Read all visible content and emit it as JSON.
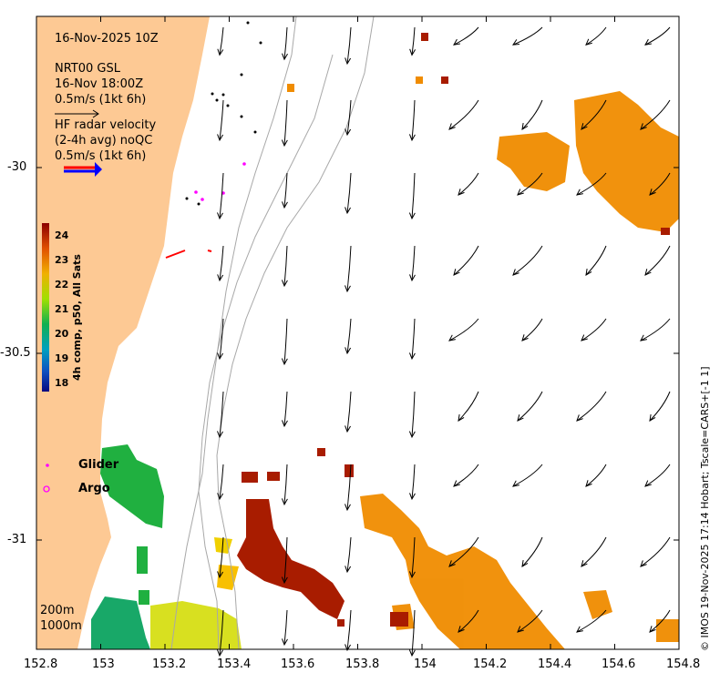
{
  "header": {
    "timestamp": "16-Nov-2025 10Z",
    "product": "NRT00 GSL",
    "product_time": "16-Nov 18:00Z",
    "product_scale": "0.5m/s (1kt 6h)",
    "radar_line1": "HF radar velocity",
    "radar_line2": "(2-4h avg) noQC",
    "radar_scale": "0.5m/s (1kt 6h)"
  },
  "colorbar": {
    "title": "4h comp, p50, All Sats",
    "ticks": [
      "24",
      "23",
      "22",
      "21",
      "20",
      "19",
      "18"
    ]
  },
  "legend": {
    "glider": "Glider",
    "argo": "Argo"
  },
  "isobaths": {
    "depth1": "200m",
    "depth2": "1000m"
  },
  "axes": {
    "x_ticks": [
      "152.8",
      "153",
      "153.2",
      "153.4",
      "153.6",
      "153.8",
      "154",
      "154.2",
      "154.4",
      "154.6",
      "154.8"
    ],
    "y_ticks": [
      "-30",
      "-30.5",
      "-31"
    ]
  },
  "credit": "© IMOS 19-Nov-2025 17:14 Hobart; Tscale=CARS+[-1 1]",
  "colors": {
    "land": "#fdc994",
    "sst_warm": "#f08c00",
    "sst_hot": "#a01800",
    "sst_cool": "#10b040",
    "glider": "#ff00ff",
    "argo": "#ff00ff",
    "radar_arrow": "#ff0000"
  }
}
